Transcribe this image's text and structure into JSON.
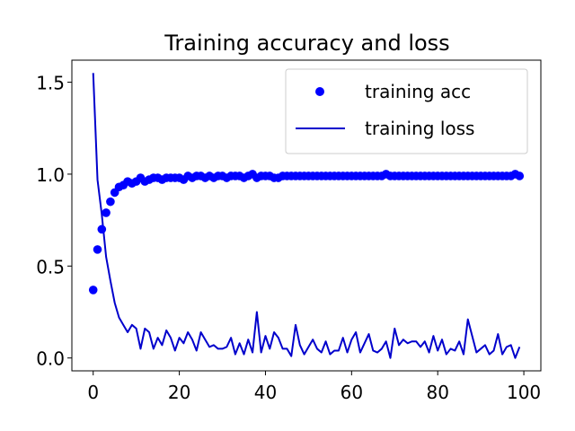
{
  "chart_data": {
    "type": "scatter",
    "title": "Training accuracy and loss",
    "xlabel": "",
    "ylabel": "",
    "xlim": [
      -4.95,
      103.95
    ],
    "ylim": [
      -0.07,
      1.62
    ],
    "xticks": [
      0,
      20,
      40,
      60,
      80,
      100
    ],
    "xtick_labels": [
      "0",
      "20",
      "40",
      "60",
      "80",
      "100"
    ],
    "yticks": [
      0.0,
      0.5,
      1.0,
      1.5
    ],
    "ytick_labels": [
      "0.0",
      "0.5",
      "1.0",
      "1.5"
    ],
    "grid": false,
    "legend_position": "top-right",
    "series": [
      {
        "name": "training acc",
        "kind": "scatter",
        "color": "#0000ff",
        "x": [
          0,
          1,
          2,
          3,
          4,
          5,
          6,
          7,
          8,
          9,
          10,
          11,
          12,
          13,
          14,
          15,
          16,
          17,
          18,
          19,
          20,
          21,
          22,
          23,
          24,
          25,
          26,
          27,
          28,
          29,
          30,
          31,
          32,
          33,
          34,
          35,
          36,
          37,
          38,
          39,
          40,
          41,
          42,
          43,
          44,
          45,
          46,
          47,
          48,
          49,
          50,
          51,
          52,
          53,
          54,
          55,
          56,
          57,
          58,
          59,
          60,
          61,
          62,
          63,
          64,
          65,
          66,
          67,
          68,
          69,
          70,
          71,
          72,
          73,
          74,
          75,
          76,
          77,
          78,
          79,
          80,
          81,
          82,
          83,
          84,
          85,
          86,
          87,
          88,
          89,
          90,
          91,
          92,
          93,
          94,
          95,
          96,
          97,
          98,
          99
        ],
        "values": [
          0.37,
          0.59,
          0.7,
          0.79,
          0.85,
          0.9,
          0.93,
          0.94,
          0.96,
          0.95,
          0.96,
          0.98,
          0.96,
          0.97,
          0.98,
          0.98,
          0.97,
          0.98,
          0.98,
          0.98,
          0.98,
          0.97,
          0.99,
          0.98,
          0.99,
          0.99,
          0.98,
          0.99,
          0.98,
          0.99,
          0.99,
          0.98,
          0.99,
          0.99,
          0.99,
          0.98,
          0.99,
          1.0,
          0.98,
          0.99,
          0.99,
          0.99,
          0.98,
          0.98,
          0.99,
          0.99,
          0.99,
          0.99,
          0.99,
          0.99,
          0.99,
          0.99,
          0.99,
          0.99,
          0.99,
          0.99,
          0.99,
          0.99,
          0.99,
          0.99,
          0.99,
          0.99,
          0.99,
          0.99,
          0.99,
          0.99,
          0.99,
          0.99,
          1.0,
          0.99,
          0.99,
          0.99,
          0.99,
          0.99,
          0.99,
          0.99,
          0.99,
          0.99,
          0.99,
          0.99,
          0.99,
          0.99,
          0.99,
          0.99,
          0.99,
          0.99,
          0.99,
          0.99,
          0.99,
          0.99,
          0.99,
          0.99,
          0.99,
          0.99,
          0.99,
          0.99,
          0.99,
          0.99,
          1.0,
          0.99
        ]
      },
      {
        "name": "training loss",
        "kind": "line",
        "color": "#0000cc",
        "x": [
          0,
          1,
          2,
          3,
          4,
          5,
          6,
          7,
          8,
          9,
          10,
          11,
          12,
          13,
          14,
          15,
          16,
          17,
          18,
          19,
          20,
          21,
          22,
          23,
          24,
          25,
          26,
          27,
          28,
          29,
          30,
          31,
          32,
          33,
          34,
          35,
          36,
          37,
          38,
          39,
          40,
          41,
          42,
          43,
          44,
          45,
          46,
          47,
          48,
          49,
          50,
          51,
          52,
          53,
          54,
          55,
          56,
          57,
          58,
          59,
          60,
          61,
          62,
          63,
          64,
          65,
          66,
          67,
          68,
          69,
          70,
          71,
          72,
          73,
          74,
          75,
          76,
          77,
          78,
          79,
          80,
          81,
          82,
          83,
          84,
          85,
          86,
          87,
          88,
          89,
          90,
          91,
          92,
          93,
          94,
          95,
          96,
          97,
          98,
          99
        ],
        "values": [
          1.55,
          0.97,
          0.78,
          0.55,
          0.42,
          0.3,
          0.22,
          0.18,
          0.14,
          0.18,
          0.16,
          0.05,
          0.16,
          0.14,
          0.05,
          0.11,
          0.07,
          0.15,
          0.11,
          0.04,
          0.11,
          0.08,
          0.14,
          0.1,
          0.04,
          0.14,
          0.1,
          0.06,
          0.07,
          0.05,
          0.05,
          0.06,
          0.11,
          0.02,
          0.08,
          0.02,
          0.1,
          0.03,
          0.25,
          0.03,
          0.12,
          0.05,
          0.14,
          0.11,
          0.05,
          0.05,
          0.01,
          0.18,
          0.07,
          0.02,
          0.06,
          0.1,
          0.05,
          0.03,
          0.09,
          0.02,
          0.04,
          0.04,
          0.11,
          0.03,
          0.1,
          0.14,
          0.03,
          0.08,
          0.13,
          0.04,
          0.03,
          0.05,
          0.09,
          0.0,
          0.16,
          0.07,
          0.1,
          0.08,
          0.09,
          0.09,
          0.06,
          0.09,
          0.03,
          0.12,
          0.04,
          0.1,
          0.02,
          0.05,
          0.04,
          0.09,
          0.02,
          0.21,
          0.12,
          0.03,
          0.05,
          0.07,
          0.02,
          0.04,
          0.13,
          0.02,
          0.06,
          0.07,
          0.0,
          0.06
        ]
      }
    ]
  }
}
